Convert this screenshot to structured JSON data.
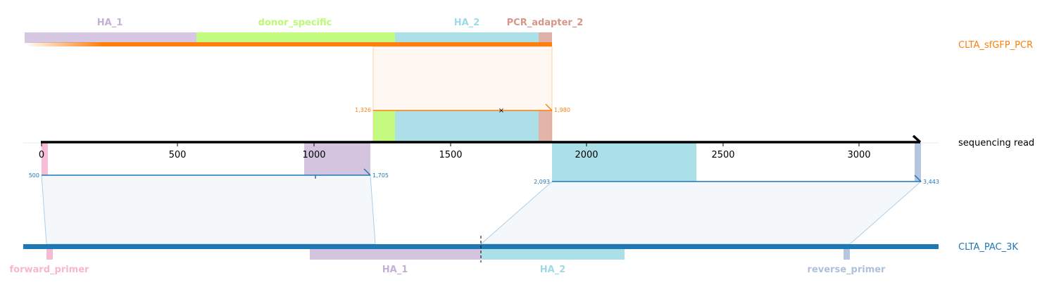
{
  "tracks": {
    "donor": {
      "name": "CLTA_sfGFP_PCR",
      "color": "#ff7f0e"
    },
    "read": {
      "name": "sequencing read",
      "color": "#000000"
    },
    "genome": {
      "name": "CLTA_PAC_3K",
      "color": "#1f77b4"
    }
  },
  "donor_features": [
    {
      "name": "HA_1",
      "color": "#c5b0d5"
    },
    {
      "name": "donor_specific",
      "color": "#bcfa72"
    },
    {
      "name": "HA_2",
      "color": "#9edae5"
    },
    {
      "name": "PCR_adapter_2",
      "color": "#d6978a"
    }
  ],
  "genome_features": [
    {
      "name": "forward_primer",
      "color": "#f7b6d2"
    },
    {
      "name": "HA_1",
      "color": "#c5b0d5"
    },
    {
      "name": "HA_2",
      "color": "#9edae5"
    },
    {
      "name": "reverse_primer",
      "color": "#aec0dc"
    }
  ],
  "axis": {
    "ticks": [
      "0",
      "500",
      "1000",
      "1500",
      "2000",
      "2500",
      "3000"
    ]
  },
  "alignments": {
    "donor": {
      "start_label": "1,326",
      "end_label": "1,980"
    },
    "genome_left": {
      "start_label": "500",
      "end_label": "1,705"
    },
    "genome_right": {
      "start_label": "2,093",
      "end_label": "3,443"
    }
  }
}
